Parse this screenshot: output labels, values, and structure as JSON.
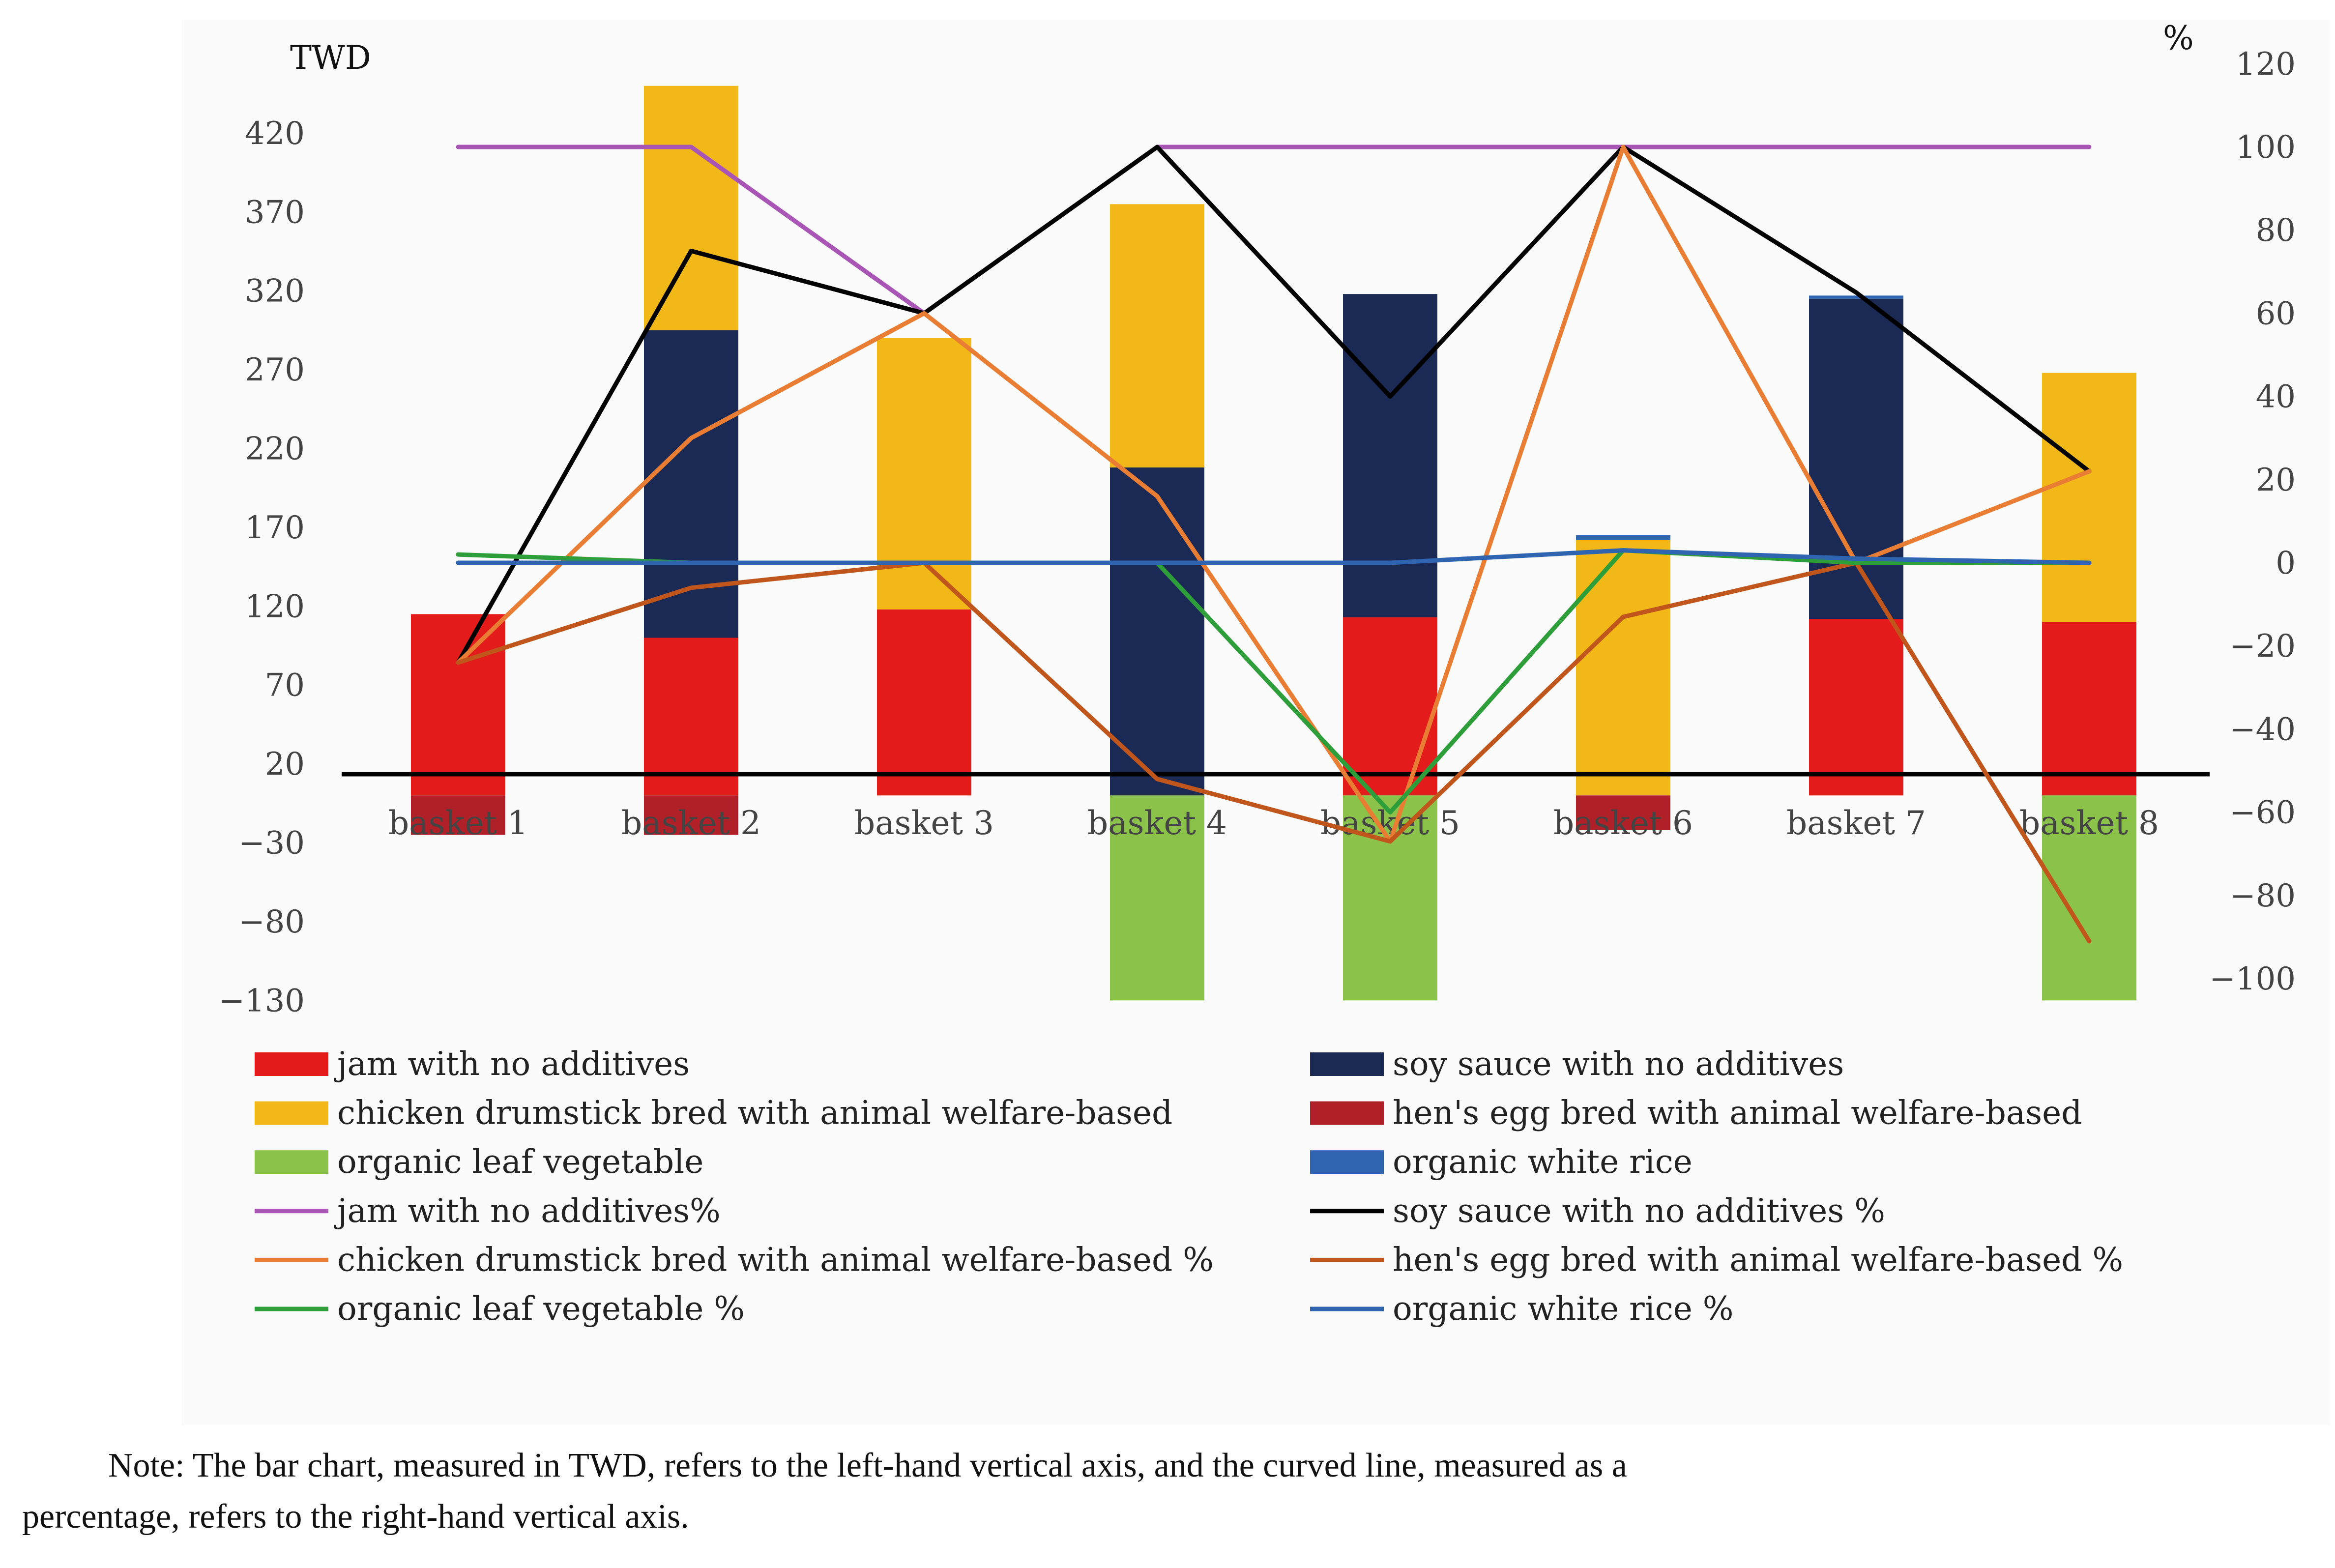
{
  "chart_data": {
    "type": "bar+line",
    "categories": [
      "basket 1",
      "basket 2",
      "basket 3",
      "basket 4",
      "basket 5",
      "basket 6",
      "basket 7",
      "basket 8"
    ],
    "left_axis": {
      "label": "TWD",
      "ticks": [
        420,
        370,
        320,
        270,
        220,
        170,
        120,
        70,
        20,
        -30,
        -80,
        -130
      ],
      "ylim": [
        -130,
        460
      ]
    },
    "right_axis": {
      "label": "%",
      "ticks": [
        120,
        100,
        80,
        60,
        40,
        20,
        0,
        -20,
        -40,
        -60,
        -80,
        -100
      ],
      "ylim": [
        -100,
        120
      ]
    },
    "bar_series": [
      {
        "name": "jam with no additives",
        "color": "#e31b1b",
        "values": [
          115,
          100,
          118,
          0,
          113,
          0,
          112,
          110
        ]
      },
      {
        "name": "soy sauce with no additives",
        "color": "#1b2a54",
        "values": [
          0,
          195,
          0,
          208,
          205,
          0,
          203,
          0
        ]
      },
      {
        "name": "chicken drumstick bred with animal welfare-based",
        "color": "#f2b818",
        "values": [
          0,
          155,
          172,
          167,
          0,
          162,
          0,
          158
        ]
      },
      {
        "name": "hen's egg bred with animal welfare-based",
        "color": "#b02028",
        "values": [
          -25,
          -25,
          0,
          0,
          0,
          -22,
          0,
          0
        ]
      },
      {
        "name": "organic leaf vegetable",
        "color": "#8bc34a",
        "values": [
          0,
          0,
          0,
          -130,
          -130,
          0,
          0,
          -130
        ]
      },
      {
        "name": "organic white rice",
        "color": "#2e64b0",
        "values": [
          0,
          0,
          0,
          0,
          0,
          3,
          2,
          0
        ]
      }
    ],
    "line_series": [
      {
        "name": "jam with no additives%",
        "color": "#a855b5",
        "values": [
          100,
          100,
          60,
          100,
          100,
          100,
          100,
          100
        ]
      },
      {
        "name": "soy sauce with no additives %",
        "color": "#000000",
        "values": [
          -24,
          75,
          60,
          100,
          40,
          100,
          65,
          22
        ]
      },
      {
        "name": "chicken drumstick bred with animal welfare-based %",
        "color": "#ea7d34",
        "values": [
          -24,
          30,
          60,
          16,
          -67,
          100,
          0,
          22
        ]
      },
      {
        "name": "hen's egg bred with animal welfare-based %",
        "color": "#c0561c",
        "values": [
          -24,
          -6,
          0,
          -52,
          -67,
          -13,
          0,
          -91
        ]
      },
      {
        "name": "organic leaf vegetable %",
        "color": "#2e9e3a",
        "values": [
          2,
          0,
          0,
          0,
          -60,
          3,
          0,
          0
        ]
      },
      {
        "name": "organic white rice %",
        "color": "#2e64b0",
        "values": [
          0,
          0,
          0,
          0,
          0,
          3,
          1,
          0
        ]
      }
    ]
  },
  "note": {
    "line1": "Note: The bar chart, measured in TWD, refers to the left-hand vertical axis, and the curved line, measured as a",
    "line2": "percentage, refers to the right-hand vertical axis."
  }
}
